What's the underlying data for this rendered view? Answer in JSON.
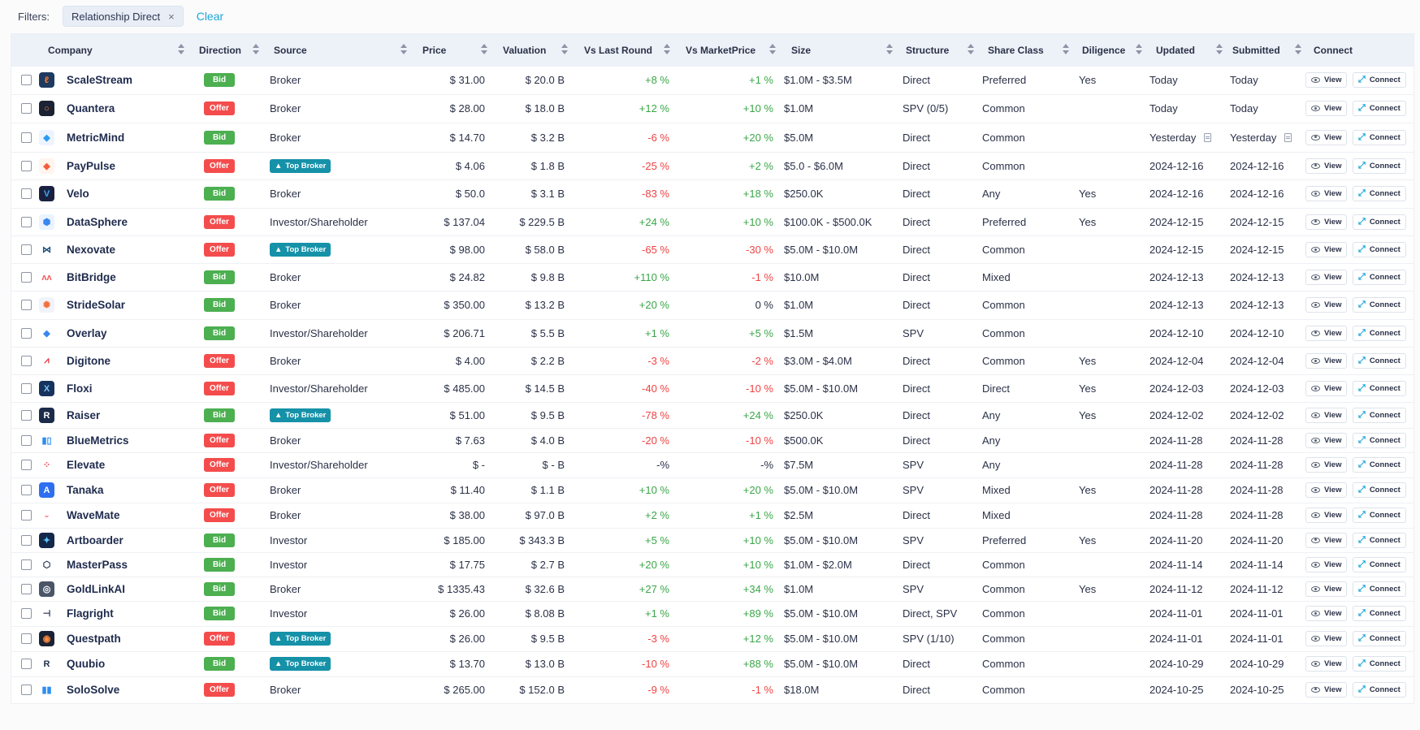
{
  "filters": {
    "label": "Filters:",
    "chips": [
      {
        "label": "Relationship Direct",
        "remove": "×"
      }
    ],
    "clear_label": "Clear"
  },
  "table": {
    "headers": {
      "company": "Company",
      "direction": "Direction",
      "source": "Source",
      "price": "Price",
      "valuation": "Valuation",
      "vs_last_round": "Vs Last Round",
      "vs_market_price": "Vs MarketPrice",
      "size": "Size",
      "structure": "Structure",
      "share_class": "Share Class",
      "diligence": "Diligence",
      "updated": "Updated",
      "submitted": "Submitted",
      "connect": "Connect"
    },
    "view_label": "View",
    "connect_label": "Connect",
    "top_broker_label": "Top Broker",
    "colors": {
      "bid": "#4caf50",
      "offer": "#f44c4c",
      "top_broker": "#1591a8",
      "positive": "#3aa648",
      "negative": "#ef4343",
      "link": "#1ea7d8"
    },
    "rows": [
      {
        "company": "ScaleStream",
        "logo": {
          "bg": "#1e3a5f",
          "fg": "#ff7a2f",
          "glyph": "ℓ"
        },
        "direction": "Bid",
        "source": "Broker",
        "top_broker": false,
        "price": "$ 31.00",
        "valuation": "$ 20.0 B",
        "vs_last_round": "+8 %",
        "vlr_sign": "pos",
        "vs_market_price": "+1 %",
        "vmp_sign": "pos",
        "size": "$1.0M - $3.5M",
        "structure": "Direct",
        "share_class": "Preferred",
        "diligence": "Yes",
        "updated": "Today",
        "submitted": "Today",
        "doc": false
      },
      {
        "company": "Quantera",
        "logo": {
          "bg": "#1b2233",
          "fg": "#ff8a3d",
          "glyph": "○"
        },
        "direction": "Offer",
        "source": "Broker",
        "top_broker": false,
        "price": "$ 28.00",
        "valuation": "$ 18.0 B",
        "vs_last_round": "+12 %",
        "vlr_sign": "pos",
        "vs_market_price": "+10 %",
        "vmp_sign": "pos",
        "size": "$1.0M",
        "structure": "SPV (0/5)",
        "share_class": "Common",
        "diligence": "",
        "updated": "Today",
        "submitted": "Today",
        "doc": false
      },
      {
        "company": "MetricMind",
        "logo": {
          "bg": "#eef4ff",
          "fg": "#2d9bf0",
          "glyph": "◆"
        },
        "direction": "Bid",
        "source": "Broker",
        "top_broker": false,
        "price": "$ 14.70",
        "valuation": "$ 3.2 B",
        "vs_last_round": "-6 %",
        "vlr_sign": "neg",
        "vs_market_price": "+20 %",
        "vmp_sign": "pos",
        "size": "$5.0M",
        "structure": "Direct",
        "share_class": "Common",
        "diligence": "",
        "updated": "Yesterday",
        "submitted": "Yesterday",
        "doc": true
      },
      {
        "company": "PayPulse",
        "logo": {
          "bg": "#fff4ee",
          "fg": "#f25d3b",
          "glyph": "◆"
        },
        "direction": "Offer",
        "source": "Top Broker",
        "top_broker": true,
        "price": "$ 4.06",
        "valuation": "$ 1.8 B",
        "vs_last_round": "-25 %",
        "vlr_sign": "neg",
        "vs_market_price": "+2 %",
        "vmp_sign": "pos",
        "size": "$5.0 - $6.0M",
        "structure": "Direct",
        "share_class": "Common",
        "diligence": "",
        "updated": "2024-12-16",
        "submitted": "2024-12-16",
        "doc": false
      },
      {
        "company": "Velo",
        "logo": {
          "bg": "#1a2140",
          "fg": "#3fa9f5",
          "glyph": "V"
        },
        "direction": "Bid",
        "source": "Broker",
        "top_broker": false,
        "price": "$ 50.0",
        "valuation": "$ 3.1 B",
        "vs_last_round": "-83 %",
        "vlr_sign": "neg",
        "vs_market_price": "+18 %",
        "vmp_sign": "pos",
        "size": "$250.0K",
        "structure": "Direct",
        "share_class": "Any",
        "diligence": "Yes",
        "updated": "2024-12-16",
        "submitted": "2024-12-16",
        "doc": false
      },
      {
        "company": "DataSphere",
        "logo": {
          "bg": "#eaf3ff",
          "fg": "#3a86f0",
          "glyph": "⬢"
        },
        "direction": "Offer",
        "source": "Investor/Shareholder",
        "top_broker": false,
        "price": "$ 137.04",
        "valuation": "$ 229.5 B",
        "vs_last_round": "+24 %",
        "vlr_sign": "pos",
        "vs_market_price": "+10 %",
        "vmp_sign": "pos",
        "size": "$100.0K - $500.0K",
        "structure": "Direct",
        "share_class": "Preferred",
        "diligence": "Yes",
        "updated": "2024-12-15",
        "submitted": "2024-12-15",
        "doc": false
      },
      {
        "company": "Nexovate",
        "logo": {
          "bg": "#ffffff",
          "fg": "#1e4f7a",
          "glyph": "⋈"
        },
        "direction": "Offer",
        "source": "Top Broker",
        "top_broker": true,
        "price": "$ 98.00",
        "valuation": "$ 58.0 B",
        "vs_last_round": "-65 %",
        "vlr_sign": "neg",
        "vs_market_price": "-30 %",
        "vmp_sign": "neg",
        "size": "$5.0M - $10.0M",
        "structure": "Direct",
        "share_class": "Common",
        "diligence": "",
        "updated": "2024-12-15",
        "submitted": "2024-12-15",
        "doc": false
      },
      {
        "company": "BitBridge",
        "logo": {
          "bg": "#ffffff",
          "fg": "#f25d5d",
          "glyph": "ᴧᴧ"
        },
        "direction": "Bid",
        "source": "Broker",
        "top_broker": false,
        "price": "$ 24.82",
        "valuation": "$ 9.8 B",
        "vs_last_round": "+110 %",
        "vlr_sign": "pos",
        "vs_market_price": "-1 %",
        "vmp_sign": "neg",
        "size": "$10.0M",
        "structure": "Direct",
        "share_class": "Mixed",
        "diligence": "",
        "updated": "2024-12-13",
        "submitted": "2024-12-13",
        "doc": false
      },
      {
        "company": "StrideSolar",
        "logo": {
          "bg": "#f1f3f8",
          "fg": "#f2703b",
          "glyph": "✺"
        },
        "direction": "Bid",
        "source": "Broker",
        "top_broker": false,
        "price": "$ 350.00",
        "valuation": "$ 13.2 B",
        "vs_last_round": "+20 %",
        "vlr_sign": "pos",
        "vs_market_price": "0 %",
        "vmp_sign": "neu",
        "size": "$1.0M",
        "structure": "Direct",
        "share_class": "Common",
        "diligence": "",
        "updated": "2024-12-13",
        "submitted": "2024-12-13",
        "doc": false
      },
      {
        "company": "Overlay",
        "logo": {
          "bg": "#ffffff",
          "fg": "#3a86f0",
          "glyph": "◆"
        },
        "direction": "Bid",
        "source": "Investor/Shareholder",
        "top_broker": false,
        "price": "$ 206.71",
        "valuation": "$ 5.5 B",
        "vs_last_round": "+1 %",
        "vlr_sign": "pos",
        "vs_market_price": "+5 %",
        "vmp_sign": "pos",
        "size": "$1.5M",
        "structure": "SPV",
        "share_class": "Common",
        "diligence": "",
        "updated": "2024-12-10",
        "submitted": "2024-12-10",
        "doc": false
      },
      {
        "company": "Digitone",
        "logo": {
          "bg": "#ffffff",
          "fg": "#e8343d",
          "glyph": "⩘"
        },
        "direction": "Offer",
        "source": "Broker",
        "top_broker": false,
        "price": "$ 4.00",
        "valuation": "$ 2.2 B",
        "vs_last_round": "-3 %",
        "vlr_sign": "neg",
        "vs_market_price": "-2 %",
        "vmp_sign": "neg",
        "size": "$3.0M - $4.0M",
        "structure": "Direct",
        "share_class": "Common",
        "diligence": "Yes",
        "updated": "2024-12-04",
        "submitted": "2024-12-04",
        "doc": false
      },
      {
        "company": "Floxi",
        "logo": {
          "bg": "#16335c",
          "fg": "#7fc3ff",
          "glyph": "X"
        },
        "direction": "Offer",
        "source": "Investor/Shareholder",
        "top_broker": false,
        "price": "$ 485.00",
        "valuation": "$ 14.5 B",
        "vs_last_round": "-40 %",
        "vlr_sign": "neg",
        "vs_market_price": "-10 %",
        "vmp_sign": "neg",
        "size": "$5.0M - $10.0M",
        "structure": "Direct",
        "share_class": "Direct",
        "diligence": "Yes",
        "updated": "2024-12-03",
        "submitted": "2024-12-03",
        "doc": false
      },
      {
        "company": "Raiser",
        "logo": {
          "bg": "#1b2b4a",
          "fg": "#ffffff",
          "glyph": "R"
        },
        "direction": "Bid",
        "source": "Top Broker",
        "top_broker": true,
        "price": "$ 51.00",
        "valuation": "$ 9.5 B",
        "vs_last_round": "-78 %",
        "vlr_sign": "neg",
        "vs_market_price": "+24 %",
        "vmp_sign": "pos",
        "size": "$250.0K",
        "structure": "Direct",
        "share_class": "Any",
        "diligence": "Yes",
        "updated": "2024-12-02",
        "submitted": "2024-12-02",
        "doc": false
      },
      {
        "company": "BlueMetrics",
        "logo": {
          "bg": "#ffffff",
          "fg": "#2d8ef0",
          "glyph": "▮▯"
        },
        "direction": "Offer",
        "source": "Broker",
        "top_broker": false,
        "price": "$ 7.63",
        "valuation": "$ 4.0 B",
        "vs_last_round": "-20 %",
        "vlr_sign": "neg",
        "vs_market_price": "-10 %",
        "vmp_sign": "neg",
        "size": "$500.0K",
        "structure": "Direct",
        "share_class": "Any",
        "diligence": "",
        "updated": "2024-11-28",
        "submitted": "2024-11-28",
        "doc": false
      },
      {
        "company": "Elevate",
        "logo": {
          "bg": "#ffffff",
          "fg": "#e84b5d",
          "glyph": "⁘"
        },
        "direction": "Offer",
        "source": "Investor/Shareholder",
        "top_broker": false,
        "price": "$ -",
        "valuation": "$ - B",
        "vs_last_round": "-%",
        "vlr_sign": "neu",
        "vs_market_price": "-%",
        "vmp_sign": "neu",
        "size": "$7.5M",
        "structure": "SPV",
        "share_class": "Any",
        "diligence": "",
        "updated": "2024-11-28",
        "submitted": "2024-11-28",
        "doc": false
      },
      {
        "company": "Tanaka",
        "logo": {
          "bg": "#2d6ff0",
          "fg": "#ffffff",
          "glyph": "A"
        },
        "direction": "Offer",
        "source": "Broker",
        "top_broker": false,
        "price": "$ 11.40",
        "valuation": "$ 1.1 B",
        "vs_last_round": "+10 %",
        "vlr_sign": "pos",
        "vs_market_price": "+20 %",
        "vmp_sign": "pos",
        "size": "$5.0M - $10.0M",
        "structure": "SPV",
        "share_class": "Mixed",
        "diligence": "Yes",
        "updated": "2024-11-28",
        "submitted": "2024-11-28",
        "doc": false
      },
      {
        "company": "WaveMate",
        "logo": {
          "bg": "#ffffff",
          "fg": "#f2a0a8",
          "glyph": "◒"
        },
        "direction": "Offer",
        "source": "Broker",
        "top_broker": false,
        "price": "$ 38.00",
        "valuation": "$ 97.0 B",
        "vs_last_round": "+2 %",
        "vlr_sign": "pos",
        "vs_market_price": "+1 %",
        "vmp_sign": "pos",
        "size": "$2.5M",
        "structure": "Direct",
        "share_class": "Mixed",
        "diligence": "",
        "updated": "2024-11-28",
        "submitted": "2024-11-28",
        "doc": false
      },
      {
        "company": "Artboarder",
        "logo": {
          "bg": "#14284a",
          "fg": "#5ec8ff",
          "glyph": "✦"
        },
        "direction": "Bid",
        "source": "Investor",
        "top_broker": false,
        "price": "$ 185.00",
        "valuation": "$ 343.3 B",
        "vs_last_round": "+5 %",
        "vlr_sign": "pos",
        "vs_market_price": "+10 %",
        "vmp_sign": "pos",
        "size": "$5.0M - $10.0M",
        "structure": "SPV",
        "share_class": "Preferred",
        "diligence": "Yes",
        "updated": "2024-11-20",
        "submitted": "2024-11-20",
        "doc": false
      },
      {
        "company": "MasterPass",
        "logo": {
          "bg": "#ffffff",
          "fg": "#1f2b4d",
          "glyph": "⬡"
        },
        "direction": "Bid",
        "source": "Investor",
        "top_broker": false,
        "price": "$ 17.75",
        "valuation": "$ 2.7 B",
        "vs_last_round": "+20 %",
        "vlr_sign": "pos",
        "vs_market_price": "+10 %",
        "vmp_sign": "pos",
        "size": "$1.0M - $2.0M",
        "structure": "Direct",
        "share_class": "Common",
        "diligence": "",
        "updated": "2024-11-14",
        "submitted": "2024-11-14",
        "doc": false
      },
      {
        "company": "GoldLinkAI",
        "logo": {
          "bg": "#4a5568",
          "fg": "#ffffff",
          "glyph": "◎"
        },
        "direction": "Bid",
        "source": "Broker",
        "top_broker": false,
        "price": "$ 1335.43",
        "valuation": "$ 32.6 B",
        "vs_last_round": "+27 %",
        "vlr_sign": "pos",
        "vs_market_price": "+34 %",
        "vmp_sign": "pos",
        "size": "$1.0M",
        "structure": "SPV",
        "share_class": "Common",
        "diligence": "Yes",
        "updated": "2024-11-12",
        "submitted": "2024-11-12",
        "doc": false
      },
      {
        "company": "Flagright",
        "logo": {
          "bg": "#ffffff",
          "fg": "#1f2b4d",
          "glyph": "⊣"
        },
        "direction": "Bid",
        "source": "Investor",
        "top_broker": false,
        "price": "$ 26.00",
        "valuation": "$ 8.08 B",
        "vs_last_round": "+1 %",
        "vlr_sign": "pos",
        "vs_market_price": "+89 %",
        "vmp_sign": "pos",
        "size": "$5.0M - $10.0M",
        "structure": "Direct, SPV",
        "share_class": "Common",
        "diligence": "",
        "updated": "2024-11-01",
        "submitted": "2024-11-01",
        "doc": false
      },
      {
        "company": "Questpath",
        "logo": {
          "bg": "#1b2233",
          "fg": "#ff8a3d",
          "glyph": "◉"
        },
        "direction": "Offer",
        "source": "Top Broker",
        "top_broker": true,
        "price": "$ 26.00",
        "valuation": "$ 9.5 B",
        "vs_last_round": "-3 %",
        "vlr_sign": "neg",
        "vs_market_price": "+12 %",
        "vmp_sign": "pos",
        "size": "$5.0M - $10.0M",
        "structure": "SPV (1/10)",
        "share_class": "Common",
        "diligence": "",
        "updated": "2024-11-01",
        "submitted": "2024-11-01",
        "doc": false
      },
      {
        "company": "Quubio",
        "logo": {
          "bg": "#ffffff",
          "fg": "#1f2b4d",
          "glyph": "R"
        },
        "direction": "Bid",
        "source": "Top Broker",
        "top_broker": true,
        "price": "$ 13.70",
        "valuation": "$ 13.0 B",
        "vs_last_round": "-10 %",
        "vlr_sign": "neg",
        "vs_market_price": "+88 %",
        "vmp_sign": "pos",
        "size": "$5.0M - $10.0M",
        "structure": "Direct",
        "share_class": "Common",
        "diligence": "",
        "updated": "2024-10-29",
        "submitted": "2024-10-29",
        "doc": false
      },
      {
        "company": "SoloSolve",
        "logo": {
          "bg": "#ffffff",
          "fg": "#2d8ef0",
          "glyph": "▮▮"
        },
        "direction": "Offer",
        "source": "Broker",
        "top_broker": false,
        "price": "$ 265.00",
        "valuation": "$ 152.0 B",
        "vs_last_round": "-9 %",
        "vlr_sign": "neg",
        "vs_market_price": "-1 %",
        "vmp_sign": "neg",
        "size": "$18.0M",
        "structure": "Direct",
        "share_class": "Common",
        "diligence": "",
        "updated": "2024-10-25",
        "submitted": "2024-10-25",
        "doc": false
      }
    ]
  }
}
